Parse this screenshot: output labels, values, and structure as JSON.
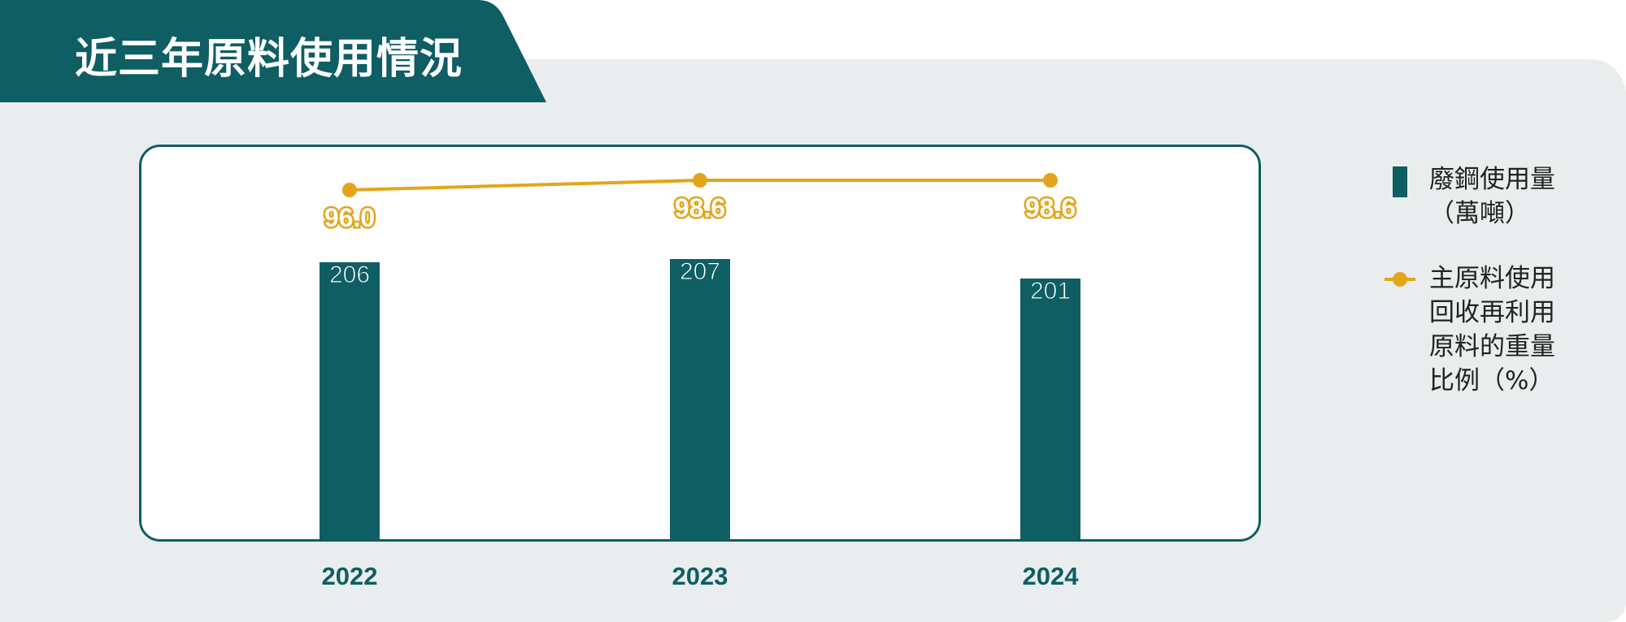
{
  "title": "近三年原料使用情況",
  "colors": {
    "accent": "#0e5e63",
    "line": "#e2a51a",
    "panel_background": "#e9edee"
  },
  "chart_data": {
    "type": "bar",
    "categories": [
      "2022",
      "2023",
      "2024"
    ],
    "series": [
      {
        "name": "廢鋼使用量（萬噸）",
        "type": "bar",
        "values": [
          206,
          207,
          201
        ],
        "labels": [
          "206",
          "207",
          "201"
        ]
      },
      {
        "name": "主原料使用回收再利用原料的重量比例（%）",
        "type": "line",
        "values": [
          96.0,
          98.6,
          98.6
        ],
        "labels": [
          "96.0",
          "98.6",
          "98.6"
        ]
      }
    ],
    "legend": "right",
    "grid": false
  },
  "legend": {
    "bar_label": "廢鋼使用量\n（萬噸）",
    "line_label": "主原料使用\n回收再利用\n原料的重量\n比例（%）"
  }
}
